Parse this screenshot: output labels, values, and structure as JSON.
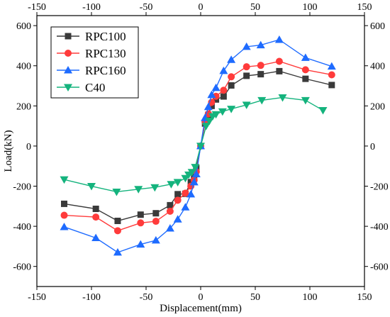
{
  "chart_data": {
    "type": "line",
    "title": "",
    "xlabel": "Displacement(mm)",
    "ylabel": "Load(kN)",
    "xlim": [
      -150,
      150
    ],
    "ylim": [
      -700,
      650
    ],
    "x_ticks": [
      -150,
      -100,
      -50,
      0,
      50,
      100,
      150
    ],
    "y_ticks": [
      -600,
      -400,
      -200,
      0,
      200,
      400,
      600
    ],
    "secondary_axes_mirrored": true,
    "grid": false,
    "legend_position": "top-left",
    "series": [
      {
        "name": "RPC100",
        "color": "#3a3a3a",
        "marker": "square",
        "x": [
          -125,
          -96,
          -76,
          -55,
          -41,
          -28,
          -21,
          -14,
          -9,
          -6,
          -4,
          0,
          4,
          7,
          10,
          14,
          21,
          28,
          42,
          55,
          72,
          96,
          120
        ],
        "y": [
          -288,
          -313,
          -373,
          -342,
          -335,
          -295,
          -240,
          -238,
          -180,
          -150,
          -110,
          0,
          112,
          155,
          200,
          232,
          247,
          302,
          350,
          358,
          373,
          335,
          304
        ]
      },
      {
        "name": "RPC130",
        "color": "#ff3b3b",
        "marker": "circle",
        "x": [
          -125,
          -96,
          -76,
          -55,
          -41,
          -28,
          -21,
          -14,
          -9,
          -6,
          -4,
          0,
          4,
          7,
          10,
          14,
          21,
          28,
          42,
          55,
          72,
          96,
          120
        ],
        "y": [
          -345,
          -354,
          -422,
          -383,
          -375,
          -325,
          -270,
          -235,
          -200,
          -170,
          -128,
          0,
          120,
          160,
          218,
          248,
          278,
          345,
          395,
          402,
          422,
          380,
          355
        ]
      },
      {
        "name": "RPC160",
        "color": "#1e6bff",
        "marker": "triangle-up",
        "x": [
          -125,
          -96,
          -76,
          -55,
          -41,
          -28,
          -21,
          -14,
          -9,
          -6,
          -4,
          0,
          4,
          7,
          10,
          14,
          21,
          28,
          42,
          55,
          72,
          96,
          120
        ],
        "y": [
          -403,
          -458,
          -530,
          -490,
          -470,
          -410,
          -365,
          -305,
          -240,
          -180,
          -140,
          0,
          140,
          195,
          255,
          290,
          375,
          430,
          495,
          503,
          530,
          440,
          397
        ]
      },
      {
        "name": "C40",
        "color": "#14b37d",
        "marker": "triangle-down",
        "x": [
          -125,
          -100,
          -77,
          -57,
          -42,
          -27,
          -21,
          -14,
          -11,
          -8,
          -5,
          0,
          5,
          8,
          11,
          14,
          20,
          28,
          42,
          56,
          75,
          96,
          112
        ],
        "y": [
          -167,
          -200,
          -228,
          -215,
          -206,
          -190,
          -180,
          -160,
          -143,
          -130,
          -105,
          0,
          100,
          125,
          148,
          158,
          172,
          185,
          205,
          228,
          242,
          228,
          178
        ]
      }
    ]
  }
}
